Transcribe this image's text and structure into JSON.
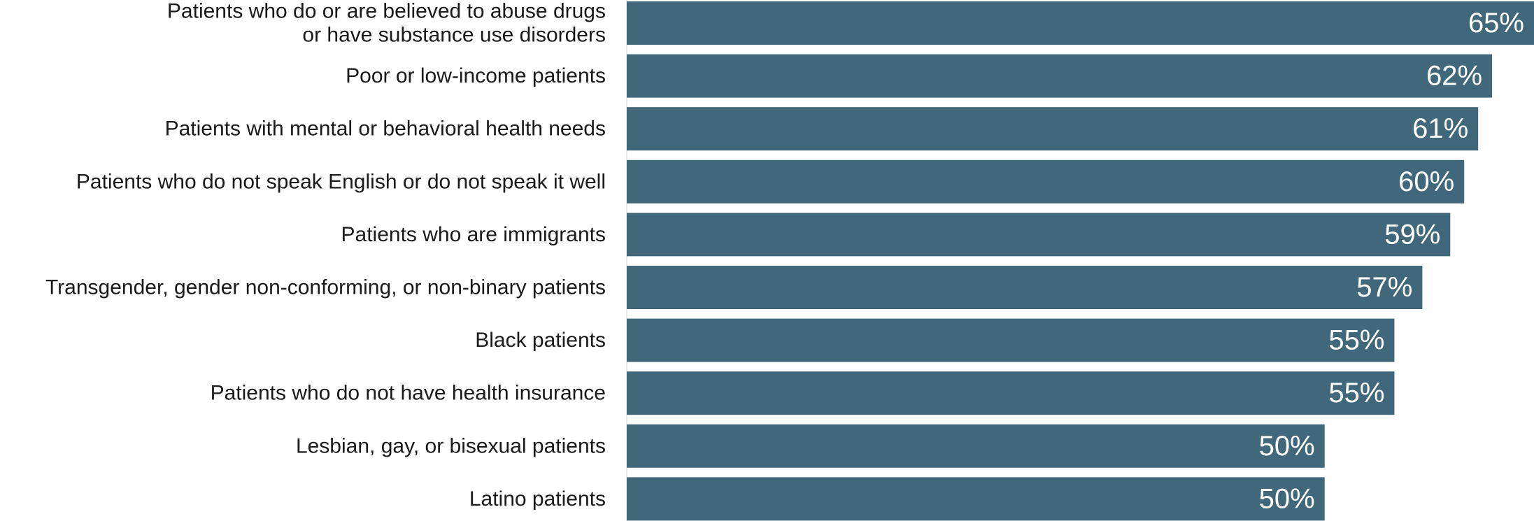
{
  "chart_data": {
    "type": "bar",
    "orientation": "horizontal",
    "categories": [
      [
        "Patients who do or are believed to abuse drugs",
        "or have substance use disorders"
      ],
      [
        "Poor or low-income patients"
      ],
      [
        "Patients with mental or behavioral health needs"
      ],
      [
        "Patients who do not speak English or do not speak it well"
      ],
      [
        "Patients who are immigrants"
      ],
      [
        "Transgender, gender non-conforming, or non-binary patients"
      ],
      [
        "Black patients"
      ],
      [
        "Patients who do not have health insurance"
      ],
      [
        "Lesbian, gay, or bisexual patients"
      ],
      [
        "Latino patients"
      ]
    ],
    "values": [
      65,
      62,
      61,
      60,
      59,
      57,
      55,
      55,
      50,
      50
    ],
    "value_labels": [
      "65%",
      "62%",
      "61%",
      "60%",
      "59%",
      "57%",
      "55%",
      "55%",
      "50%",
      "50%"
    ],
    "title": "",
    "xlabel": "",
    "ylabel": "",
    "xlim": [
      0,
      65
    ],
    "grid": false,
    "legend": "none",
    "bar_color": "#41687a",
    "axis_color": "#d9d9d9"
  }
}
